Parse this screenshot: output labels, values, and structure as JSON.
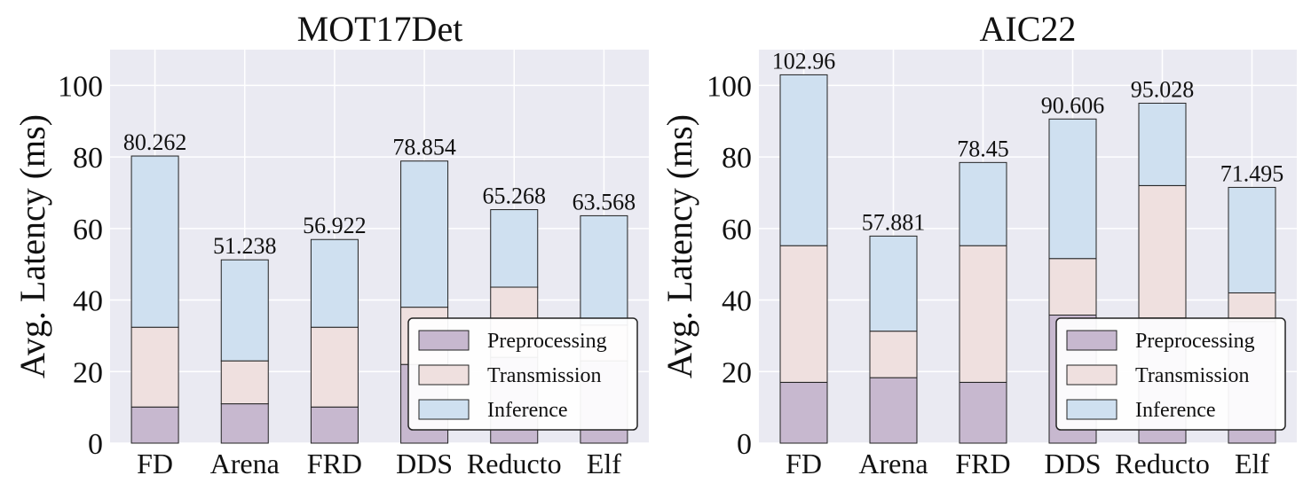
{
  "chart_data": [
    {
      "type": "bar",
      "stacked": true,
      "title": "MOT17Det",
      "ylabel": "Avg. Latency (ms)",
      "xlabel": "",
      "ylim": [
        0,
        110
      ],
      "yticks": [
        0,
        20,
        40,
        60,
        80,
        100
      ],
      "grid": true,
      "legend_position": "bottom-right",
      "categories": [
        "FD",
        "Arena",
        "FRD",
        "DDS",
        "Reducto",
        "Elf"
      ],
      "series": [
        {
          "name": "Preprocessing",
          "color": "#c7b8cf",
          "values": [
            10.1,
            11.0,
            10.1,
            22.0,
            24.0,
            23.0
          ]
        },
        {
          "name": "Transmission",
          "color": "#efe0df",
          "values": [
            22.3,
            12.0,
            22.3,
            16.0,
            19.6,
            10.0
          ]
        },
        {
          "name": "Inference",
          "color": "#cfe0f0",
          "values": [
            47.862,
            28.238,
            24.522,
            40.854,
            21.668,
            30.568
          ]
        }
      ],
      "totals": [
        "80.262",
        "51.238",
        "56.922",
        "78.854",
        "65.268",
        "63.568"
      ]
    },
    {
      "type": "bar",
      "stacked": true,
      "title": "AIC22",
      "ylabel": "Avg. Latency (ms)",
      "xlabel": "",
      "ylim": [
        0,
        110
      ],
      "yticks": [
        0,
        20,
        40,
        60,
        80,
        100
      ],
      "grid": true,
      "legend_position": "bottom-right",
      "categories": [
        "FD",
        "Arena",
        "FRD",
        "DDS",
        "Reducto",
        "Elf"
      ],
      "series": [
        {
          "name": "Preprocessing",
          "color": "#c7b8cf",
          "values": [
            17.0,
            18.3,
            17.0,
            35.8,
            35.0,
            34.0
          ]
        },
        {
          "name": "Transmission",
          "color": "#efe0df",
          "values": [
            38.2,
            13.0,
            38.2,
            15.8,
            37.0,
            8.0
          ]
        },
        {
          "name": "Inference",
          "color": "#cfe0f0",
          "values": [
            47.76,
            26.581,
            23.25,
            39.006,
            23.028,
            29.495
          ]
        }
      ],
      "totals": [
        "102.96",
        "57.881",
        "78.45",
        "90.606",
        "95.028",
        "71.495"
      ]
    }
  ]
}
